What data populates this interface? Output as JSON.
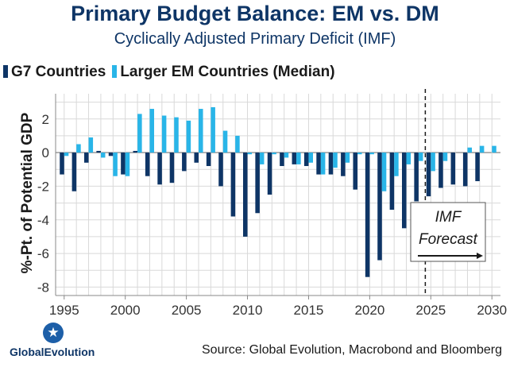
{
  "chart_data": {
    "type": "bar",
    "title": "Primary Budget Balance: EM vs. DM",
    "subtitle": "Cyclically Adjusted Primary Deficit (IMF)",
    "ylabel": "%-Pt. of Potential GDP",
    "xlabel": "",
    "ylim": [
      -8.5,
      3.5
    ],
    "yticks": [
      2,
      0,
      -2,
      -4,
      -6,
      -8
    ],
    "yticklabels": [
      "2",
      "0",
      "-2",
      "-4",
      "-6",
      "-8"
    ],
    "xlim": [
      1994.3,
      2030.7
    ],
    "xticks": [
      1995,
      2000,
      2005,
      2010,
      2015,
      2020,
      2025,
      2030
    ],
    "xticklabels": [
      "1995",
      "2000",
      "2005",
      "2010",
      "2015",
      "2020",
      "2025",
      "2030"
    ],
    "grid": true,
    "legend_position": "top-left",
    "forecast_start": 2024,
    "forecast_label_1": "IMF",
    "forecast_label_2": "Forecast",
    "years": [
      1995,
      1996,
      1997,
      1998,
      1999,
      2000,
      2001,
      2002,
      2003,
      2004,
      2005,
      2006,
      2007,
      2008,
      2009,
      2010,
      2011,
      2012,
      2013,
      2014,
      2015,
      2016,
      2017,
      2018,
      2019,
      2020,
      2021,
      2022,
      2023,
      2024,
      2025,
      2026,
      2027,
      2028,
      2029,
      2030
    ],
    "series": [
      {
        "name": "G7 Countries",
        "color": "#0e3566",
        "values": [
          -1.3,
          -2.3,
          -0.6,
          0.1,
          -0.2,
          -1.3,
          0.1,
          -1.4,
          -1.9,
          -1.8,
          -1.1,
          -0.6,
          -0.8,
          -2.0,
          -3.8,
          -5.0,
          -3.6,
          -2.5,
          -0.8,
          -0.7,
          -0.8,
          -1.3,
          -1.3,
          -1.4,
          -2.2,
          -7.4,
          -6.4,
          -3.4,
          -4.5,
          -2.9,
          -2.6,
          -2.1,
          -1.9,
          -2.0,
          -1.7,
          0
        ]
      },
      {
        "name": "Larger EM Countries (Median)",
        "color": "#29b5e8",
        "values": [
          -0.2,
          0.5,
          0.9,
          -0.3,
          -1.4,
          -1.4,
          2.3,
          2.6,
          2.2,
          2.1,
          1.9,
          2.6,
          2.7,
          1.3,
          1.0,
          -0.1,
          -0.7,
          -0.1,
          -0.3,
          -0.7,
          -0.6,
          -1.3,
          -0.9,
          -0.6,
          -0.1,
          -0.1,
          -2.3,
          -1.4,
          -0.7,
          -0.5,
          -1.1,
          -0.5,
          0.0,
          0.3,
          0.4,
          0.4
        ]
      }
    ]
  },
  "footer": {
    "logo_text": "GlobalEvolution",
    "source": "Source: Global Evolution, Macrobond and Bloomberg"
  }
}
